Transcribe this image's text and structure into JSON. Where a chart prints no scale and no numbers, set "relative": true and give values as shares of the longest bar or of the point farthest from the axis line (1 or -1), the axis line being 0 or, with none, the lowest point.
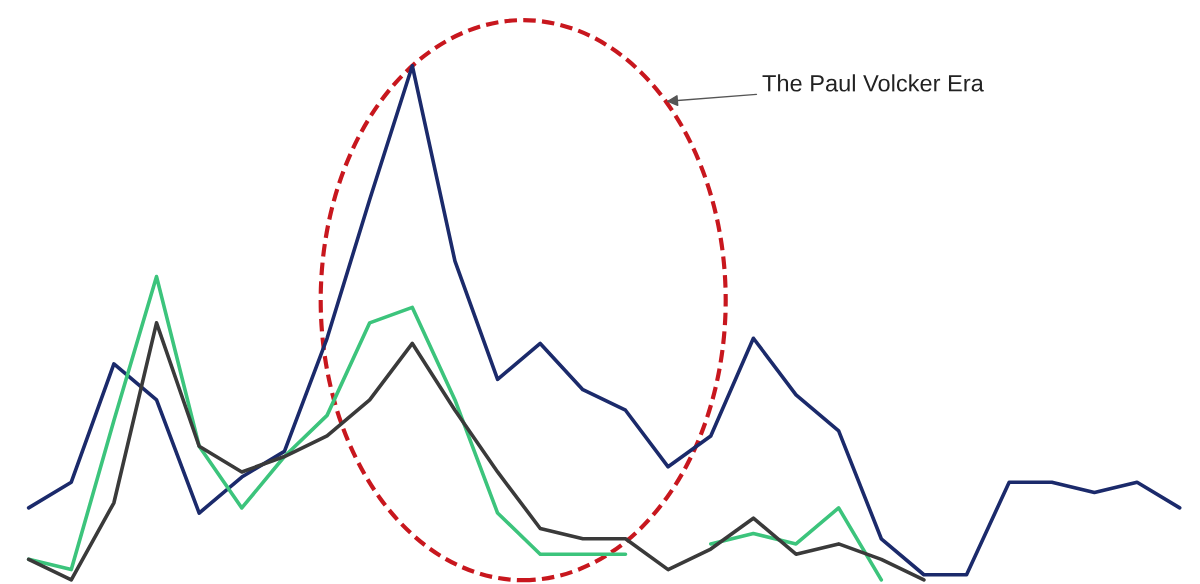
{
  "chart_data": {
    "type": "line",
    "relative": true,
    "categories": [
      null,
      null,
      null,
      null,
      null,
      null,
      null,
      null,
      null,
      null,
      null,
      null,
      null,
      null,
      null,
      null,
      null,
      null,
      null,
      null,
      null,
      null,
      null,
      null,
      null,
      null,
      null,
      null
    ],
    "series": [
      {
        "color": "#1b2a6b",
        "values": [
          0.14,
          0.19,
          0.42,
          0.35,
          0.13,
          0.2,
          0.25,
          0.47,
          0.74,
          1,
          0.62,
          0.39,
          0.46,
          0.37,
          0.33,
          0.22,
          0.28,
          0.47,
          0.36,
          0.29,
          0.08,
          0.01,
          0.01,
          0.19,
          0.19,
          0.17,
          0.19,
          0.14
        ]
      },
      {
        "color": "#3cc47c",
        "values": [
          0.04,
          0.02,
          0.31,
          0.59,
          0.26,
          0.14,
          0.24,
          0.32,
          0.5,
          0.53,
          0.35,
          0.13,
          0.05,
          0.05,
          0.05,
          null,
          0.07,
          0.09,
          0.07,
          0.14,
          0.0,
          null,
          null,
          null,
          null,
          null,
          null,
          null
        ]
      },
      {
        "color": "#3a3a3a",
        "values": [
          0.04,
          0.0,
          0.15,
          0.5,
          0.26,
          0.21,
          0.24,
          0.28,
          0.35,
          0.46,
          0.33,
          0.21,
          0.1,
          0.08,
          0.08,
          0.02,
          0.06,
          0.12,
          0.05,
          0.07,
          0.04,
          0.0,
          null,
          null,
          null,
          null,
          null,
          null
        ]
      }
    ],
    "annotations": [
      "The Paul Volcker Era"
    ],
    "legend": false,
    "grid": false,
    "marker": "none",
    "line_style": "solid"
  }
}
